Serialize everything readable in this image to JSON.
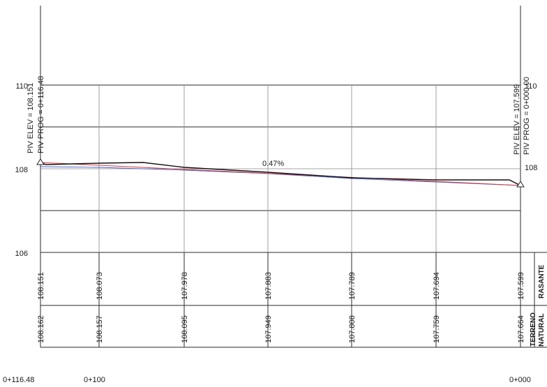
{
  "profile": {
    "elevation_labels": [
      "110",
      "108",
      "106"
    ],
    "grade_label": "0.47%",
    "start_piv": {
      "elev_text": "PIV ELEV = 108.151",
      "prog_text": "PIV PROG = 0+116.48"
    },
    "end_piv": {
      "elev_text": "PIV ELEV = 107.599",
      "prog_text": "PIV PROG = 0+000.00"
    },
    "right_elevation_labels": [
      "110",
      "108"
    ],
    "rasante": {
      "label": "RASANTE",
      "values": [
        "108.151",
        "108.073",
        "107.978",
        "107.883",
        "107.789",
        "107.694",
        "107.599"
      ]
    },
    "terreno_natural": {
      "label_line1": "TERRENO",
      "label_line2": "NATURAL",
      "values": [
        "108.162",
        "108.157",
        "108.095",
        "107.949",
        "107.808",
        "107.759",
        "107.664"
      ]
    },
    "stations": [
      "0+116.48",
      "0+100",
      "0+000"
    ],
    "colors": {
      "grade_line": "#d33b3b",
      "ground_line": "#111111",
      "reference_line": "#4a5fc7"
    }
  }
}
